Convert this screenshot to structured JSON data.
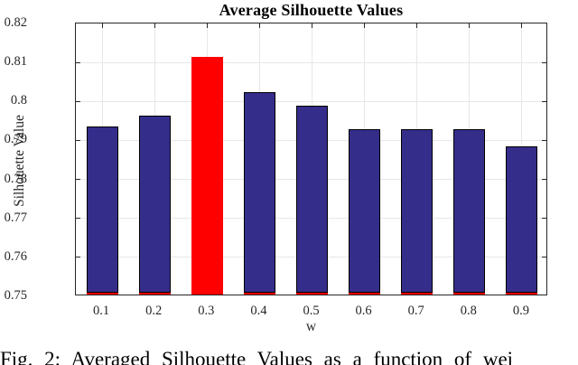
{
  "figure": {
    "caption": "Fig. 2: Averaged Silhouette Values as a function of wei"
  },
  "chart_data": {
    "type": "bar",
    "title": "Average Silhouette Values",
    "xlabel": "w",
    "ylabel": "Silhouette Value",
    "categories": [
      "0.1",
      "0.2",
      "0.3",
      "0.4",
      "0.5",
      "0.6",
      "0.7",
      "0.8",
      "0.9"
    ],
    "values": [
      0.793,
      0.796,
      0.811,
      0.802,
      0.7985,
      0.7925,
      0.7925,
      0.7925,
      0.788
    ],
    "highlight_index": 2,
    "ylim": [
      0.75,
      0.82
    ],
    "yticks": [
      0.75,
      0.76,
      0.77,
      0.78,
      0.79,
      0.8,
      0.81,
      0.82
    ],
    "ytick_labels": [
      "0.75",
      "0.76",
      "0.77",
      "0.78",
      "0.79",
      "0.8",
      "0.81",
      "0.82"
    ],
    "grid": true,
    "legend": null,
    "bar_width_frac": 0.6,
    "colors": {
      "bar": "#352D8A",
      "highlight": "#FF0000",
      "bar_edge": "#000000",
      "base_strip": "#FF0000",
      "grid": "#E7E7E7",
      "axis": "#262626",
      "text": "#262626"
    }
  }
}
